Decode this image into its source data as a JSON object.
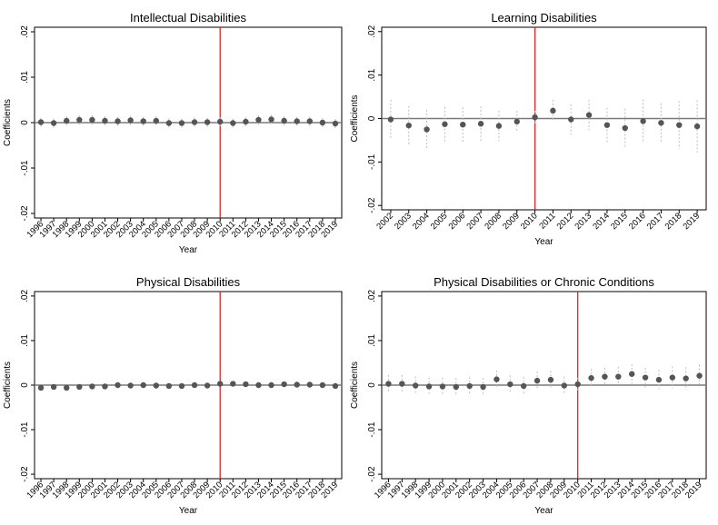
{
  "colors": {
    "marker": "#555555",
    "ci": "#bdbdbd",
    "zero_line": "#7a7a7a",
    "vline": "#d62728",
    "frame": "#000000"
  },
  "chart_data": [
    {
      "type": "scatter",
      "title": "Intellectual Disabilities",
      "xlabel": "Year",
      "ylabel": "Coefficients",
      "ylim": [
        -0.021,
        0.021
      ],
      "yticks": [
        ".02",
        ".01",
        "0",
        "-.01",
        "-.02"
      ],
      "grid": false,
      "vline_year": "2010",
      "categories": [
        "1996",
        "1997",
        "1998",
        "1999",
        "2000",
        "2001",
        "2002",
        "2003",
        "2004",
        "2005",
        "2006",
        "2007",
        "2008",
        "2009",
        "2010",
        "2011",
        "2012",
        "2013",
        "2014",
        "2015",
        "2016",
        "2017",
        "2018",
        "2019"
      ],
      "values": [
        0.0001,
        -0.0001,
        0.0004,
        0.0006,
        0.0006,
        0.0004,
        0.0003,
        0.0005,
        0.0003,
        0.0004,
        -0.0001,
        -0.0001,
        0.0001,
        0.0001,
        0.0002,
        -0.0001,
        0.0002,
        0.0006,
        0.0007,
        0.0004,
        0.0003,
        0.0003,
        0.0,
        -0.0002
      ],
      "ci_half": [
        0.001,
        0.001,
        0.001,
        0.001,
        0.001,
        0.001,
        0.001,
        0.001,
        0.001,
        0.001,
        0.001,
        0.001,
        0.001,
        0.001,
        0.001,
        0.001,
        0.001,
        0.001,
        0.001,
        0.001,
        0.001,
        0.001,
        0.001,
        0.001
      ]
    },
    {
      "type": "scatter",
      "title": "Learning Disabilities",
      "xlabel": "Year",
      "ylabel": "Coefficients",
      "ylim": [
        -0.021,
        0.021
      ],
      "yticks": [
        ".02",
        ".01",
        "0",
        "-.01",
        "-.02"
      ],
      "grid": false,
      "vline_year": "2010",
      "categories": [
        "2002",
        "2003",
        "2004",
        "2005",
        "2006",
        "2007",
        "2008",
        "2009",
        "2010",
        "2011",
        "2012",
        "2013",
        "2014",
        "2015",
        "2016",
        "2017",
        "2018",
        "2019"
      ],
      "values": [
        -0.0002,
        -0.0016,
        -0.0025,
        -0.0013,
        -0.0014,
        -0.0012,
        -0.0017,
        -0.0007,
        0.0003,
        0.0018,
        -0.0002,
        0.0008,
        -0.0015,
        -0.0022,
        -0.0006,
        -0.001,
        -0.0015,
        -0.0018
      ],
      "ci_half": [
        0.0045,
        0.0045,
        0.0045,
        0.004,
        0.004,
        0.004,
        0.0035,
        0.0025,
        0.0015,
        0.0025,
        0.0035,
        0.0035,
        0.004,
        0.0045,
        0.005,
        0.0045,
        0.0055,
        0.006
      ]
    },
    {
      "type": "scatter",
      "title": "Physical Disabilities",
      "xlabel": "Year",
      "ylabel": "Coefficients",
      "ylim": [
        -0.021,
        0.021
      ],
      "yticks": [
        ".02",
        ".01",
        "0",
        "-.01",
        "-.02"
      ],
      "grid": false,
      "vline_year": "2010",
      "categories": [
        "1996",
        "1997",
        "1998",
        "1999",
        "2000",
        "2001",
        "2002",
        "2003",
        "2004",
        "2005",
        "2006",
        "2007",
        "2008",
        "2009",
        "2010",
        "2011",
        "2012",
        "2013",
        "2014",
        "2015",
        "2016",
        "2017",
        "2018",
        "2019"
      ],
      "values": [
        -0.0006,
        -0.0004,
        -0.0006,
        -0.0004,
        -0.0003,
        -0.0003,
        0.0,
        -0.0001,
        0.0,
        -0.0001,
        -0.0002,
        -0.0002,
        0.0,
        -0.0001,
        0.0003,
        0.0003,
        0.0002,
        0.0,
        0.0,
        0.0002,
        0.0001,
        0.0001,
        0.0,
        -0.0002
      ],
      "ci_half": [
        0.0005,
        0.0005,
        0.0005,
        0.0005,
        0.0005,
        0.0005,
        0.0005,
        0.0005,
        0.0005,
        0.0005,
        0.0005,
        0.0005,
        0.0005,
        0.0005,
        0.0005,
        0.0005,
        0.0005,
        0.0005,
        0.0005,
        0.0005,
        0.0005,
        0.0005,
        0.0005,
        0.0005
      ]
    },
    {
      "type": "scatter",
      "title": "Physical Disabilities or Chronic Conditions",
      "xlabel": "Year",
      "ylabel": "Coefficients",
      "ylim": [
        -0.021,
        0.021
      ],
      "yticks": [
        ".02",
        ".01",
        "0",
        "-.01",
        "-.02"
      ],
      "grid": false,
      "vline_year": "2010",
      "categories": [
        "1996",
        "1997",
        "1998",
        "1999",
        "2000",
        "2001",
        "2002",
        "2003",
        "2004",
        "2005",
        "2006",
        "2007",
        "2008",
        "2009",
        "2010",
        "2011",
        "2012",
        "2013",
        "2014",
        "2015",
        "2016",
        "2017",
        "2018",
        "2019"
      ],
      "values": [
        0.0003,
        0.0003,
        -0.0001,
        -0.0003,
        -0.0003,
        -0.0004,
        -0.0002,
        -0.0004,
        0.0013,
        0.0002,
        -0.0002,
        0.001,
        0.0012,
        -0.0001,
        0.0002,
        0.0016,
        0.0019,
        0.0019,
        0.0025,
        0.0017,
        0.0012,
        0.0017,
        0.0015,
        0.0021
      ],
      "ci_half": [
        0.002,
        0.002,
        0.002,
        0.002,
        0.002,
        0.002,
        0.002,
        0.002,
        0.002,
        0.002,
        0.002,
        0.002,
        0.002,
        0.002,
        0.0015,
        0.002,
        0.002,
        0.0022,
        0.0022,
        0.0022,
        0.0022,
        0.0025,
        0.0025,
        0.0025
      ]
    }
  ]
}
